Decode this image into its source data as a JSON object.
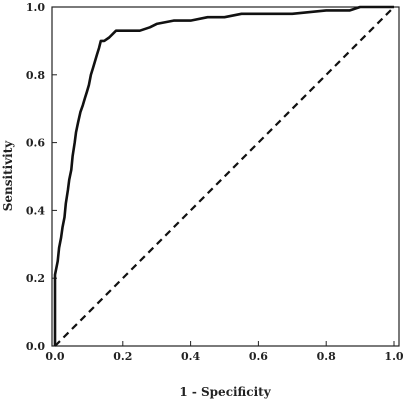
{
  "chart_data": {
    "type": "line",
    "title": "",
    "xlabel": "1 - Specificity",
    "ylabel": "Sensitivity",
    "xlim": [
      0,
      1
    ],
    "ylim": [
      0,
      1
    ],
    "x_ticks": [
      0.0,
      0.2,
      0.4,
      0.6,
      0.8,
      1.0
    ],
    "y_ticks": [
      0.0,
      0.2,
      0.4,
      0.6,
      0.8,
      1.0
    ],
    "x_tick_labels": [
      "0.0",
      "0.2",
      "0.4",
      "0.6",
      "0.8",
      "1.0"
    ],
    "y_tick_labels": [
      "0.0",
      "0.2",
      "0.4",
      "0.6",
      "0.8",
      "1.0"
    ],
    "grid": false,
    "series": [
      {
        "style": "solid",
        "color": "#111111",
        "x": [
          0.0,
          0.0,
          0.008,
          0.012,
          0.018,
          0.022,
          0.028,
          0.032,
          0.038,
          0.042,
          0.048,
          0.052,
          0.058,
          0.062,
          0.068,
          0.075,
          0.082,
          0.088,
          0.094,
          0.1,
          0.106,
          0.112,
          0.118,
          0.124,
          0.13,
          0.135,
          0.14,
          0.145,
          0.16,
          0.18,
          0.2,
          0.25,
          0.28,
          0.3,
          0.35,
          0.4,
          0.45,
          0.5,
          0.55,
          0.6,
          0.7,
          0.8,
          0.87,
          0.9,
          1.0
        ],
        "y": [
          0.0,
          0.21,
          0.25,
          0.29,
          0.32,
          0.35,
          0.38,
          0.42,
          0.46,
          0.49,
          0.52,
          0.56,
          0.6,
          0.63,
          0.66,
          0.69,
          0.71,
          0.73,
          0.75,
          0.77,
          0.8,
          0.82,
          0.84,
          0.86,
          0.88,
          0.9,
          0.9,
          0.9,
          0.91,
          0.93,
          0.93,
          0.93,
          0.94,
          0.95,
          0.96,
          0.96,
          0.97,
          0.97,
          0.98,
          0.98,
          0.98,
          0.99,
          0.99,
          1.0,
          1.0
        ]
      },
      {
        "style": "dashed",
        "color": "#111111",
        "x": [
          0.0,
          1.0
        ],
        "y": [
          0.0,
          1.0
        ]
      }
    ]
  }
}
